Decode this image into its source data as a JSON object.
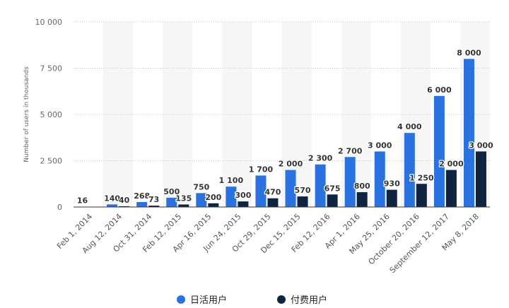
{
  "chart_data": {
    "type": "bar",
    "ylabel": "Number of users in thousands",
    "ylim": [
      0,
      10000
    ],
    "yticks": [
      0,
      2500,
      5000,
      7500,
      10000
    ],
    "ytick_labels": [
      "0",
      "2 500",
      "5 000",
      "7 500",
      "10 000"
    ],
    "grid": true,
    "legend_placement": "bottom",
    "categories": [
      "Feb 1, 2014",
      "Aug 12, 2014",
      "Oct 31, 2014",
      "Feb 12, 2015",
      "Apr 16, 2015",
      "Jun 24, 2015",
      "Oct 29, 2015",
      "Dec 15, 2015",
      "Feb 12, 2016",
      "Apr 1, 2016",
      "May 25, 2016",
      "October 20, 2016",
      "September 12, 2017",
      "May 8, 2018"
    ],
    "series": [
      {
        "name": "日活用户",
        "color": "#2a72e0",
        "values": [
          16,
          140,
          268,
          500,
          750,
          1100,
          1700,
          2000,
          2300,
          2700,
          3000,
          4000,
          6000,
          8000
        ],
        "labels": [
          "16",
          "140",
          "268",
          "500",
          "750",
          "1 100",
          "1 700",
          "2 000",
          "2 300",
          "2 700",
          "3 000",
          "4 000",
          "6 000",
          "8 000"
        ]
      },
      {
        "name": "付费用户",
        "color": "#0f2440",
        "values": [
          0,
          40,
          73,
          135,
          200,
          300,
          470,
          570,
          675,
          800,
          930,
          1250,
          2000,
          3000
        ],
        "labels": [
          "",
          "40",
          "73",
          "135",
          "200",
          "300",
          "470",
          "570",
          "675",
          "800",
          "930",
          "1 250",
          "2 000",
          "3 000"
        ]
      }
    ]
  }
}
